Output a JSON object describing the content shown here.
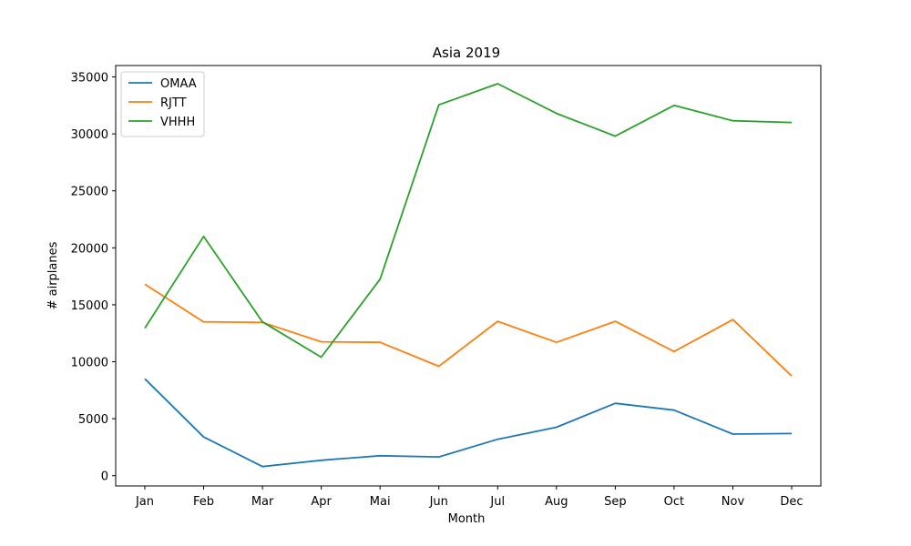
{
  "chart_data": {
    "type": "line",
    "title": "Asia 2019",
    "xlabel": "Month",
    "ylabel": "# airplanes",
    "categories": [
      "Jan",
      "Feb",
      "Mar",
      "Apr",
      "Mai",
      "Jun",
      "Jul",
      "Aug",
      "Sep",
      "Oct",
      "Nov",
      "Dec"
    ],
    "ylim": [
      -900,
      36000
    ],
    "yticks": [
      0,
      5000,
      10000,
      15000,
      20000,
      25000,
      30000,
      35000
    ],
    "grid": false,
    "legend_position": "top-left",
    "series": [
      {
        "name": "OMAA",
        "color": "#1f77b4",
        "values": [
          8500,
          3400,
          800,
          1350,
          1750,
          1650,
          3200,
          4250,
          6350,
          5750,
          3650,
          3700
        ]
      },
      {
        "name": "RJTT",
        "color": "#ff7f0e",
        "values": [
          16800,
          13500,
          13450,
          11750,
          11700,
          9600,
          13550,
          11700,
          13550,
          10900,
          13700,
          8750
        ]
      },
      {
        "name": "VHHH",
        "color": "#2ca02c",
        "values": [
          12950,
          21000,
          13500,
          10400,
          17250,
          32550,
          34400,
          31800,
          29800,
          32500,
          31150,
          31000
        ]
      }
    ]
  }
}
